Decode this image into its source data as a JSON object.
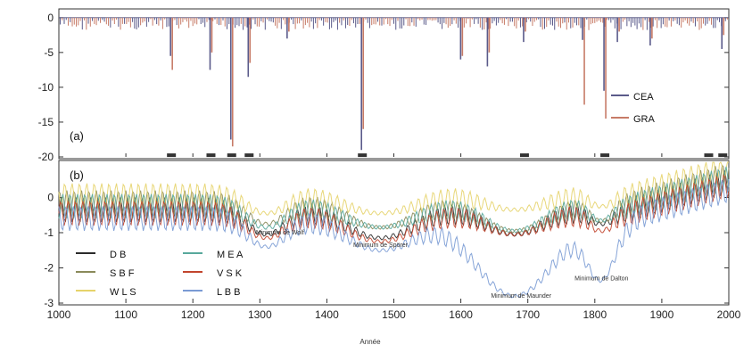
{
  "chart_data": [
    {
      "panel": "a",
      "type": "bar",
      "ylabel": "",
      "xlim": [
        1000,
        2000
      ],
      "ylim": [
        -20,
        1
      ],
      "yticks": [
        0,
        -5,
        -10,
        -15,
        -20
      ],
      "panel_label": "(a)",
      "legend_position": "right",
      "series": [
        {
          "name": "CEA",
          "color": "#5a5a8a",
          "x": [
            1168,
            1227,
            1258,
            1284,
            1342,
            1453,
            1601,
            1641,
            1695,
            1783,
            1815,
            1835,
            1884,
            1991
          ],
          "values": [
            -5.5,
            -7.5,
            -17.5,
            -8.5,
            -3.0,
            -19.0,
            -6.0,
            -7.0,
            -3.5,
            -3.2,
            -10.5,
            -3.5,
            -4.0,
            -4.5
          ]
        },
        {
          "name": "GRA",
          "color": "#c77b67",
          "x": [
            1168,
            1227,
            1258,
            1284,
            1342,
            1453,
            1601,
            1641,
            1695,
            1783,
            1815,
            1835,
            1884,
            1991
          ],
          "values": [
            -7.5,
            -5.0,
            -18.5,
            -6.5,
            -2.0,
            -16.0,
            -5.5,
            -5.0,
            -2.0,
            -12.5,
            -14.5,
            -2.0,
            -3.0,
            -2.5
          ]
        }
      ],
      "markers_x": [
        1168,
        1227,
        1258,
        1284,
        1453,
        1695,
        1815,
        1970,
        1991
      ]
    },
    {
      "panel": "b",
      "type": "line",
      "xlabel": "Année",
      "ylabel": "",
      "xlim": [
        1000,
        2000
      ],
      "ylim": [
        -3,
        1
      ],
      "yticks": [
        0,
        -1,
        -2,
        -3
      ],
      "xticks": [
        1000,
        1100,
        1200,
        1300,
        1400,
        1500,
        1600,
        1700,
        1800,
        1900,
        2000
      ],
      "panel_label": "(b)",
      "legend_position": "bottom-left",
      "series": [
        {
          "name": "D B",
          "color": "#2b2b2b"
        },
        {
          "name": "S B F",
          "color": "#8a8a5a"
        },
        {
          "name": "W L S",
          "color": "#e6d36a"
        },
        {
          "name": "M E A",
          "color": "#58a89c"
        },
        {
          "name": "V S K",
          "color": "#c2452d"
        },
        {
          "name": "L B B",
          "color": "#7a9bd4"
        }
      ],
      "annotations": [
        {
          "text": "Minimum de Wolf",
          "x": 1330,
          "y": -1.05
        },
        {
          "text": "Minimum de Spörer",
          "x": 1480,
          "y": -1.4
        },
        {
          "text": "Minimum de Maunder",
          "x": 1690,
          "y": -2.85
        },
        {
          "text": "Minimum de Dalton",
          "x": 1810,
          "y": -2.35
        }
      ]
    }
  ]
}
